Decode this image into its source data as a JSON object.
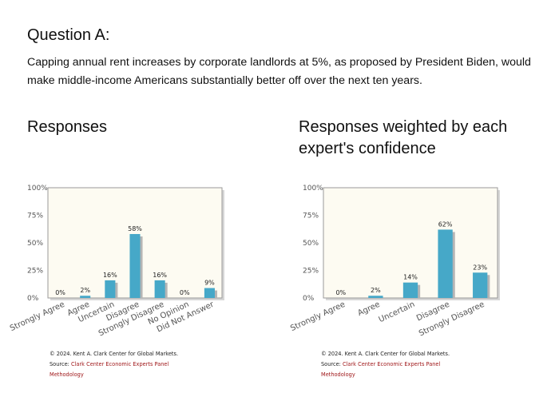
{
  "question": {
    "title": "Question A:",
    "text": "Capping annual rent increases by corporate landlords at 5%, as proposed by President Biden, would make middle-income Americans substantially better off over the next ten years."
  },
  "colors": {
    "bar": "#46a8c8",
    "bar_shadow": "#b5b5b5",
    "plot_bg": "#fdfbf2",
    "frame": "#9a9a9a",
    "credit_link": "#a0191b"
  },
  "chart_data": [
    {
      "type": "bar",
      "title": "Responses",
      "categories": [
        "Strongly Agree",
        "Agree",
        "Uncertain",
        "Disagree",
        "Strongly Disagree",
        "No Opinion",
        "Did Not Answer"
      ],
      "values": [
        0,
        2,
        16,
        58,
        16,
        0,
        9
      ],
      "value_labels": [
        "0%",
        "2%",
        "16%",
        "58%",
        "16%",
        "0%",
        "9%"
      ],
      "y_ticks": [
        "0%",
        "25%",
        "50%",
        "75%",
        "100%"
      ],
      "ylim": [
        0,
        100
      ],
      "grid": false,
      "legend": "none"
    },
    {
      "type": "bar",
      "title": "Responses weighted by each expert's confidence",
      "categories": [
        "Strongly Agree",
        "Agree",
        "Uncertain",
        "Disagree",
        "Strongly Disagree"
      ],
      "values": [
        0,
        2,
        14,
        62,
        23
      ],
      "value_labels": [
        "0%",
        "2%",
        "14%",
        "62%",
        "23%"
      ],
      "y_ticks": [
        "0%",
        "25%",
        "50%",
        "75%",
        "100%"
      ],
      "ylim": [
        0,
        100
      ],
      "grid": false,
      "legend": "none"
    }
  ],
  "credits": {
    "copyright": "© 2024. Kent A. Clark Center for Global Markets.",
    "source_label": "Source:",
    "source_link": "Clark Center Economic Experts Panel",
    "methodology": "Methodology"
  }
}
